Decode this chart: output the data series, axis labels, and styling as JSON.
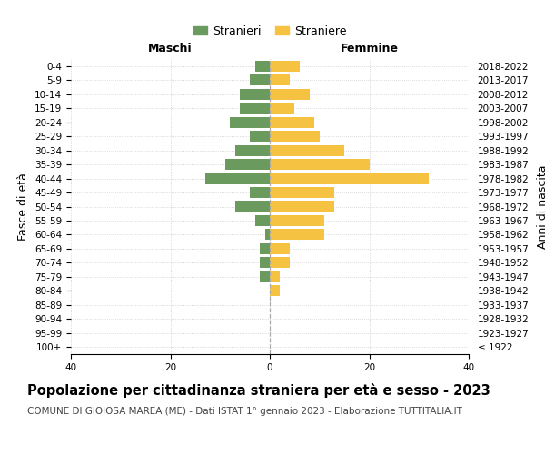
{
  "age_groups": [
    "100+",
    "95-99",
    "90-94",
    "85-89",
    "80-84",
    "75-79",
    "70-74",
    "65-69",
    "60-64",
    "55-59",
    "50-54",
    "45-49",
    "40-44",
    "35-39",
    "30-34",
    "25-29",
    "20-24",
    "15-19",
    "10-14",
    "5-9",
    "0-4"
  ],
  "birth_years": [
    "≤ 1922",
    "1923-1927",
    "1928-1932",
    "1933-1937",
    "1938-1942",
    "1943-1947",
    "1948-1952",
    "1953-1957",
    "1958-1962",
    "1963-1967",
    "1968-1972",
    "1973-1977",
    "1978-1982",
    "1983-1987",
    "1988-1992",
    "1993-1997",
    "1998-2002",
    "2003-2007",
    "2008-2012",
    "2013-2017",
    "2018-2022"
  ],
  "males": [
    0,
    0,
    0,
    0,
    0,
    2,
    2,
    2,
    1,
    3,
    7,
    4,
    13,
    9,
    7,
    4,
    8,
    6,
    6,
    4,
    3
  ],
  "females": [
    0,
    0,
    0,
    0,
    2,
    2,
    4,
    4,
    11,
    11,
    13,
    13,
    32,
    20,
    15,
    10,
    9,
    5,
    8,
    4,
    6
  ],
  "male_color": "#6b9a5e",
  "female_color": "#f5c242",
  "background_color": "#ffffff",
  "grid_color": "#cccccc",
  "title": "Popolazione per cittadinanza straniera per età e sesso - 2023",
  "subtitle": "COMUNE DI GIOIOSA MAREA (ME) - Dati ISTAT 1° gennaio 2023 - Elaborazione TUTTITALIA.IT",
  "xlabel_left": "Maschi",
  "xlabel_right": "Femmine",
  "ylabel_left": "Fasce di età",
  "ylabel_right": "Anni di nascita",
  "legend_male": "Stranieri",
  "legend_female": "Straniere",
  "xlim": 40,
  "title_fontsize": 10.5,
  "subtitle_fontsize": 7.5,
  "tick_fontsize": 7.5,
  "label_fontsize": 9
}
